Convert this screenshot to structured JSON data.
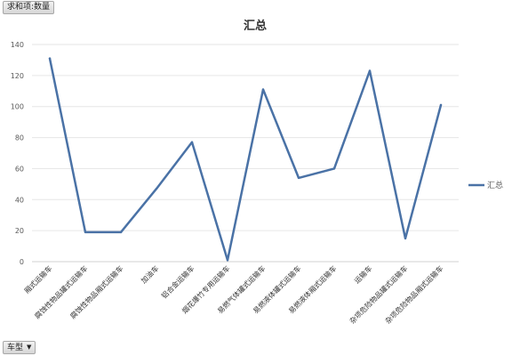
{
  "pivot": {
    "value_field_label": "求和项:数量",
    "axis_field_label": "车型"
  },
  "chart_data": {
    "type": "line",
    "title": "汇总",
    "categories": [
      "厢式运输车",
      "腐蚀性物品罐式运输车",
      "腐蚀性物品厢式运输车",
      "加油车",
      "铝合金运输车",
      "烟花爆竹专用运输车",
      "易燃气体罐式运输车",
      "易燃液体罐式运输车",
      "易燃液体厢式运输车",
      "运输车",
      "杂项危险物品罐式运输车",
      "杂项危险物品厢式运输车"
    ],
    "series": [
      {
        "name": "汇总",
        "color": "#4a72a6",
        "values": [
          131,
          19,
          19,
          47,
          77,
          1,
          111,
          54,
          60,
          123,
          15,
          101
        ]
      }
    ],
    "ylim": [
      0,
      140
    ],
    "yticks": [
      0,
      20,
      40,
      60,
      80,
      100,
      120,
      140
    ],
    "grid": true,
    "legend": "right"
  }
}
